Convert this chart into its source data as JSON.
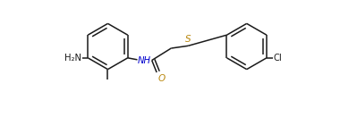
{
  "background_color": "#ffffff",
  "line_color": "#1a1a1a",
  "color_S": "#b8860b",
  "color_O": "#b8860b",
  "color_N": "#0000cd",
  "color_Cl": "#1a1a1a",
  "color_NH2": "#1a1a1a",
  "figsize": [
    3.8,
    1.31
  ],
  "dpi": 100,
  "lw": 1.1,
  "R": 0.38,
  "xlim": [
    -0.55,
    4.25
  ],
  "ylim": [
    -0.55,
    1.35
  ]
}
